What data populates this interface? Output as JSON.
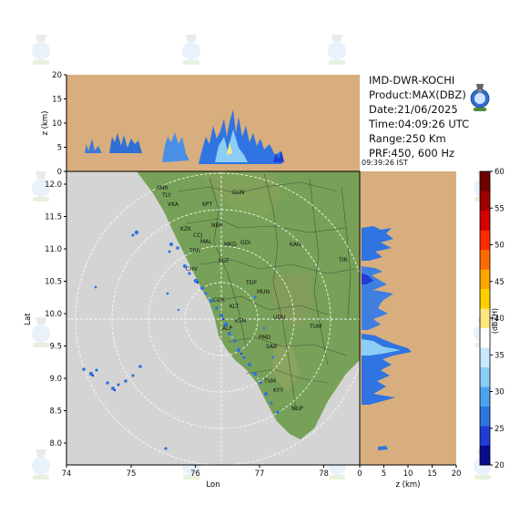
{
  "header": {
    "station": "IMD-DWR-KOCHI",
    "product": "Product:MAX(DBZ)",
    "date": "Date:21/06/2025",
    "time": "Time:04:09:26 UTC",
    "range": "Range:250 Km",
    "prf": "PRF:450, 600 Hz",
    "ist_time": "09:39:26  IST"
  },
  "axes": {
    "top_panel": {
      "ylabel": "z (km)",
      "yticks": [
        "0",
        "5",
        "10",
        "15",
        "20"
      ]
    },
    "main_map": {
      "xlabel": "Lon",
      "ylabel": "Lat",
      "xticks": [
        "74",
        "75",
        "76",
        "77",
        "78"
      ],
      "yticks": [
        "8.0",
        "8.5",
        "9.0",
        "9.5",
        "10.0",
        "10.5",
        "11.0",
        "11.5",
        "12.0"
      ]
    },
    "side_panel": {
      "xlabel": "z (km)",
      "xticks": [
        "0",
        "5",
        "10",
        "15",
        "20"
      ]
    }
  },
  "colorbar": {
    "label": "(dBZH)",
    "ticks": [
      "20",
      "25",
      "30",
      "35",
      "40",
      "45",
      "50",
      "55",
      "60"
    ],
    "colors": [
      "#0a0a8c",
      "#1f3cd4",
      "#2f74e0",
      "#4aa3ee",
      "#8ccdf6",
      "#c8e8fb",
      "#ffffff",
      "#ffe680",
      "#ffd000",
      "#ffa500",
      "#ff6a00",
      "#ff2a00",
      "#d60000",
      "#a00000",
      "#6e0000"
    ],
    "accent_colors": {
      "ocean": "#d4d4d4",
      "land": "#77a158",
      "panel": "#d8ae7e"
    }
  },
  "stations": [
    "KNR",
    "TLY",
    "VKA",
    "KPT",
    "GUN",
    "KZK",
    "NBR",
    "CCJ",
    "MAL",
    "MKD",
    "GDI",
    "CHV",
    "TRR",
    "PGT",
    "COK",
    "KLT",
    "ALP",
    "KTM",
    "PMD",
    "TVM",
    "TUM",
    "UDU",
    "KAN",
    "TIR",
    "NGP",
    "KYY",
    "TDP",
    "MUN",
    "SAB"
  ],
  "icons": [
    "imd-emblem-icon",
    "watermark-emblem-icon"
  ]
}
